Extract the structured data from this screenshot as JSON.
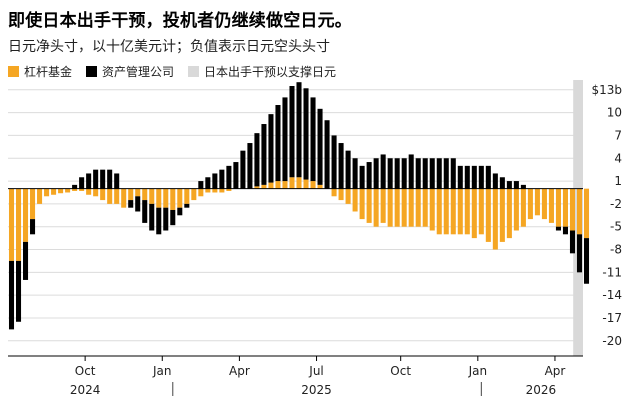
{
  "title": "即使日本出手干预，投机者仍继续做空日元。",
  "subtitle": "日元净头寸，以十亿美元计；负值表示日元空头头寸",
  "legend": [
    {
      "label": "杠杆基金",
      "color": "#f5a623"
    },
    {
      "label": "资产管理公司",
      "color": "#000000"
    },
    {
      "label": "日本出手干预以支撑日元",
      "color": "#d9d9d9"
    }
  ],
  "chart_data": {
    "type": "bar",
    "stacked": true,
    "ylabel": "$13b",
    "yticks": [
      13,
      10,
      7,
      4,
      1,
      -2,
      -5,
      -8,
      -11,
      -14,
      -17,
      -20
    ],
    "ylim": [
      -22,
      13.5
    ],
    "xlim": [
      0,
      82
    ],
    "grid": true,
    "x_month_labels": [
      {
        "label": "Oct",
        "x": 11
      },
      {
        "label": "Jan",
        "x": 22
      },
      {
        "label": "Apr",
        "x": 33
      },
      {
        "label": "Jul",
        "x": 44
      },
      {
        "label": "Oct",
        "x": 56
      },
      {
        "label": "Jan",
        "x": 67
      },
      {
        "label": "Apr",
        "x": 78
      }
    ],
    "x_year_labels": [
      {
        "label": "2024",
        "x": 11
      },
      {
        "label": "2025",
        "x": 44
      },
      {
        "label": "2026",
        "x": 76
      }
    ],
    "x_year_separators": [
      23.5,
      67.5
    ],
    "intervention_span": [
      80.6,
      84
    ],
    "series": [
      {
        "name": "杠杆基金",
        "color": "#f5a623",
        "values": [
          -9.5,
          -9.5,
          -7,
          -4,
          -2,
          -1,
          -0.8,
          -0.6,
          -0.5,
          -0.3,
          -0.3,
          -0.8,
          -1,
          -1.5,
          -2,
          -2,
          -2.5,
          -1.5,
          -1,
          -1.5,
          -2,
          -2.5,
          -2.5,
          -2.8,
          -2.5,
          -2,
          -1.5,
          -1,
          -0.5,
          -0.5,
          -0.5,
          -0.3,
          0,
          0,
          0,
          0.3,
          0.5,
          0.8,
          1,
          1,
          1.5,
          1.5,
          1.2,
          1,
          0.5,
          0,
          -1,
          -1.5,
          -2,
          -3,
          -4,
          -4.5,
          -5,
          -4.5,
          -5,
          -5,
          -5,
          -5,
          -5,
          -5,
          -5.5,
          -6,
          -6,
          -6,
          -6,
          -6,
          -6.5,
          -6,
          -7,
          -8,
          -7,
          -6.5,
          -5.5,
          -5,
          -4,
          -3.5,
          -4,
          -4.5,
          -5,
          -5,
          -5.5,
          -6,
          -6.5
        ]
      },
      {
        "name": "资产管理公司",
        "color": "#000000",
        "values": [
          -9,
          -8,
          -5,
          -2,
          0,
          0,
          0,
          0,
          0,
          0.5,
          1.5,
          2,
          2.5,
          2.5,
          2.5,
          2,
          0,
          -1,
          -2,
          -3,
          -3.5,
          -3.5,
          -3,
          -2,
          -1,
          -0.5,
          0,
          1,
          1.5,
          2,
          2.5,
          3,
          3.5,
          5,
          6,
          7,
          8,
          9,
          10,
          11,
          12,
          12.5,
          12,
          11,
          10,
          9,
          7,
          6,
          5,
          4,
          3,
          3.5,
          4,
          4.5,
          4,
          4,
          4,
          4.5,
          4,
          4,
          4,
          4,
          4,
          4,
          3,
          3,
          3,
          3,
          3,
          2,
          1.5,
          1,
          1,
          0.5,
          0,
          0,
          0,
          0,
          -0.5,
          -1,
          -3,
          -5,
          -6
        ]
      }
    ]
  }
}
